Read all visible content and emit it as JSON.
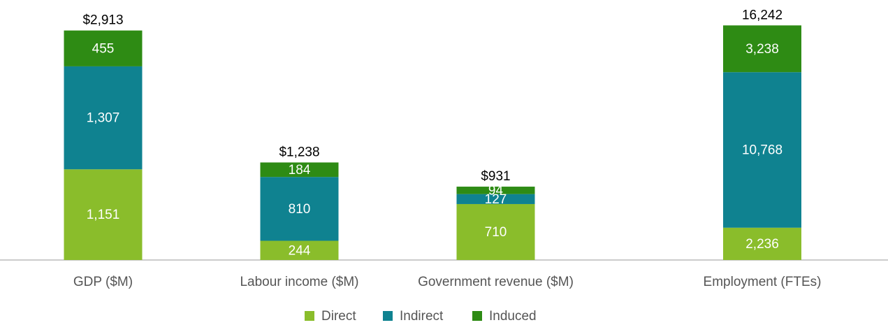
{
  "chart_data": [
    {
      "type": "bar",
      "stacked": true,
      "categories": [
        "GDP ($M)",
        "Labour income ($M)",
        "Government revenue ($M)"
      ],
      "series": [
        {
          "name": "Direct",
          "color": "#8abd2b",
          "values": [
            1151,
            244,
            710
          ],
          "value_labels": [
            "1,151",
            "244",
            "710"
          ]
        },
        {
          "name": "Indirect",
          "color": "#0f8290",
          "values": [
            1307,
            810,
            127
          ],
          "value_labels": [
            "1,307",
            "810",
            "127"
          ]
        },
        {
          "name": "Induced",
          "color": "#2e8b14",
          "values": [
            455,
            184,
            94
          ],
          "value_labels": [
            "455",
            "184",
            "94"
          ]
        }
      ],
      "totals": [
        2913,
        1238,
        931
      ],
      "total_labels": [
        "$2,913",
        "$1,238",
        "$931"
      ],
      "ylim": [
        0,
        3300
      ]
    },
    {
      "type": "bar",
      "stacked": true,
      "categories": [
        "Employment (FTEs)"
      ],
      "series": [
        {
          "color": "#8abd2b",
          "values": [
            2236
          ],
          "value_labels": [
            "2,236"
          ]
        },
        {
          "color": "#0f8290",
          "values": [
            10768
          ],
          "value_labels": [
            "10,768"
          ]
        },
        {
          "color": "#2e8b14",
          "values": [
            3238
          ],
          "value_labels": [
            "3,238"
          ]
        }
      ],
      "totals": [
        16242
      ],
      "total_labels": [
        "16,242"
      ],
      "ylim": [
        0,
        18000
      ]
    }
  ]
}
